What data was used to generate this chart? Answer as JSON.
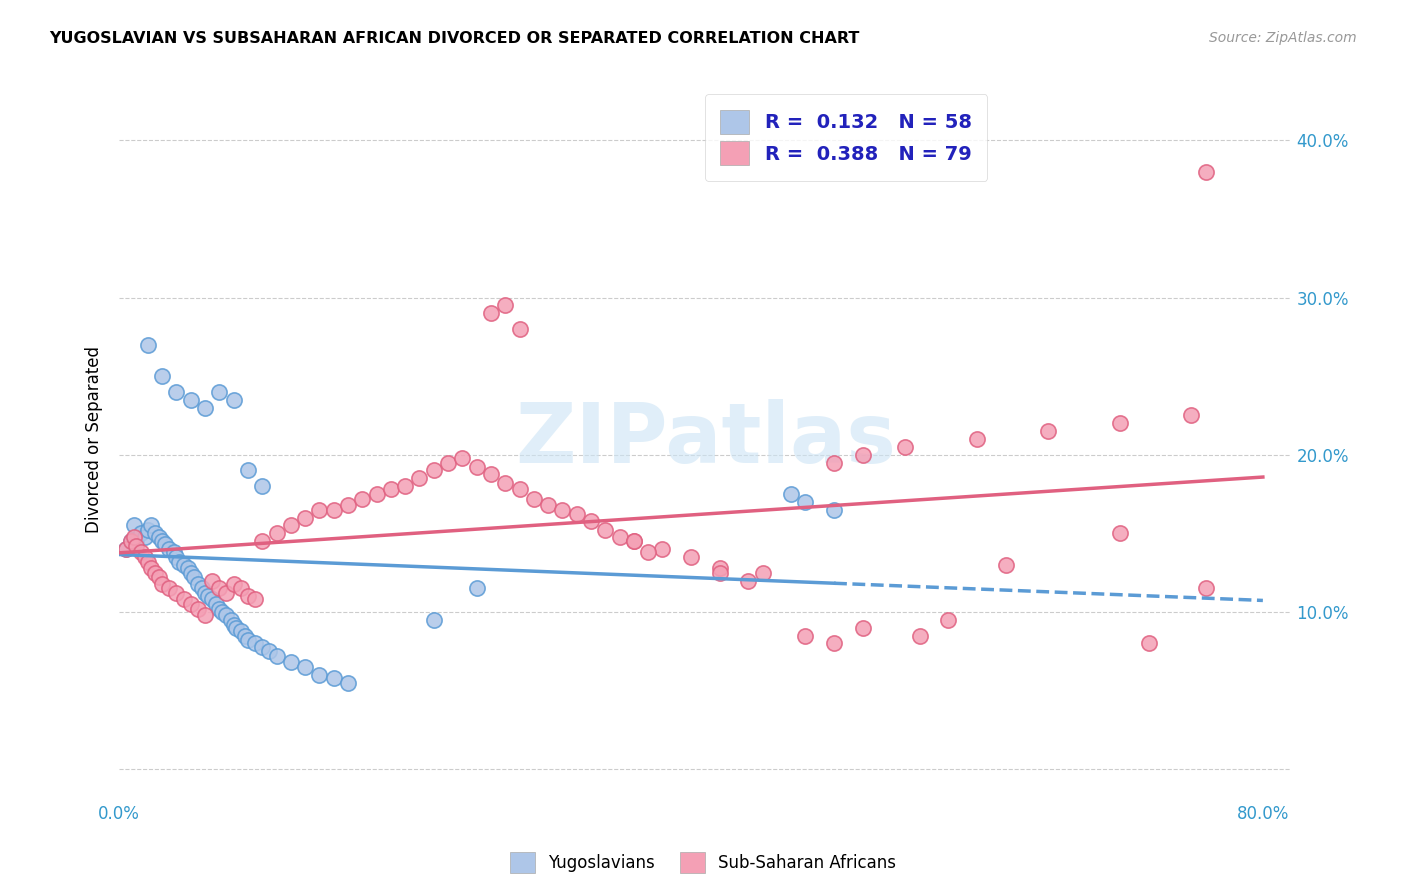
{
  "title": "YUGOSLAVIAN VS SUBSAHARAN AFRICAN DIVORCED OR SEPARATED CORRELATION CHART",
  "source": "Source: ZipAtlas.com",
  "ylabel": "Divorced or Separated",
  "xlim": [
    0.0,
    0.82
  ],
  "ylim": [
    -0.02,
    0.44
  ],
  "yticks": [
    0.0,
    0.1,
    0.2,
    0.3,
    0.4
  ],
  "ytick_labels": [
    "",
    "10.0%",
    "20.0%",
    "30.0%",
    "40.0%"
  ],
  "xticks": [
    0.0,
    0.1,
    0.2,
    0.3,
    0.4,
    0.5,
    0.6,
    0.7,
    0.8
  ],
  "xtick_labels": [
    "0.0%",
    "",
    "",
    "",
    "",
    "",
    "",
    "",
    "80.0%"
  ],
  "blue_R": 0.132,
  "blue_N": 58,
  "pink_R": 0.388,
  "pink_N": 79,
  "blue_color": "#aec6e8",
  "pink_color": "#f4a0b5",
  "blue_line_color": "#5b9bd5",
  "pink_line_color": "#e06080",
  "watermark": "ZIPatlas",
  "legend_color": "#2222bb",
  "blue_x": [
    0.005,
    0.008,
    0.01,
    0.012,
    0.015,
    0.018,
    0.02,
    0.022,
    0.025,
    0.028,
    0.03,
    0.032,
    0.035,
    0.038,
    0.04,
    0.042,
    0.045,
    0.048,
    0.05,
    0.052,
    0.055,
    0.058,
    0.06,
    0.062,
    0.065,
    0.068,
    0.07,
    0.072,
    0.075,
    0.078,
    0.08,
    0.082,
    0.085,
    0.088,
    0.09,
    0.095,
    0.1,
    0.105,
    0.11,
    0.12,
    0.13,
    0.14,
    0.15,
    0.16,
    0.22,
    0.25,
    0.02,
    0.03,
    0.04,
    0.05,
    0.06,
    0.07,
    0.08,
    0.09,
    0.1,
    0.47,
    0.48,
    0.5
  ],
  "blue_y": [
    0.14,
    0.145,
    0.155,
    0.145,
    0.15,
    0.148,
    0.152,
    0.155,
    0.15,
    0.148,
    0.145,
    0.143,
    0.14,
    0.138,
    0.135,
    0.132,
    0.13,
    0.128,
    0.125,
    0.122,
    0.118,
    0.115,
    0.112,
    0.11,
    0.108,
    0.105,
    0.102,
    0.1,
    0.098,
    0.095,
    0.092,
    0.09,
    0.088,
    0.085,
    0.082,
    0.08,
    0.078,
    0.075,
    0.072,
    0.068,
    0.065,
    0.06,
    0.058,
    0.055,
    0.095,
    0.115,
    0.27,
    0.25,
    0.24,
    0.235,
    0.23,
    0.24,
    0.235,
    0.19,
    0.18,
    0.175,
    0.17,
    0.165
  ],
  "pink_x": [
    0.005,
    0.008,
    0.01,
    0.012,
    0.015,
    0.018,
    0.02,
    0.022,
    0.025,
    0.028,
    0.03,
    0.035,
    0.04,
    0.045,
    0.05,
    0.055,
    0.06,
    0.065,
    0.07,
    0.075,
    0.08,
    0.085,
    0.09,
    0.095,
    0.1,
    0.11,
    0.12,
    0.13,
    0.14,
    0.15,
    0.16,
    0.17,
    0.18,
    0.19,
    0.2,
    0.21,
    0.22,
    0.23,
    0.24,
    0.25,
    0.26,
    0.27,
    0.28,
    0.29,
    0.3,
    0.31,
    0.32,
    0.33,
    0.34,
    0.35,
    0.36,
    0.38,
    0.4,
    0.42,
    0.45,
    0.5,
    0.52,
    0.55,
    0.6,
    0.65,
    0.7,
    0.75,
    0.76,
    0.26,
    0.27,
    0.28,
    0.36,
    0.37,
    0.42,
    0.44,
    0.48,
    0.5,
    0.52,
    0.56,
    0.58,
    0.62,
    0.7,
    0.72,
    0.76
  ],
  "pink_y": [
    0.14,
    0.145,
    0.148,
    0.142,
    0.138,
    0.135,
    0.132,
    0.128,
    0.125,
    0.122,
    0.118,
    0.115,
    0.112,
    0.108,
    0.105,
    0.102,
    0.098,
    0.12,
    0.115,
    0.112,
    0.118,
    0.115,
    0.11,
    0.108,
    0.145,
    0.15,
    0.155,
    0.16,
    0.165,
    0.165,
    0.168,
    0.172,
    0.175,
    0.178,
    0.18,
    0.185,
    0.19,
    0.195,
    0.198,
    0.192,
    0.188,
    0.182,
    0.178,
    0.172,
    0.168,
    0.165,
    0.162,
    0.158,
    0.152,
    0.148,
    0.145,
    0.14,
    0.135,
    0.128,
    0.125,
    0.195,
    0.2,
    0.205,
    0.21,
    0.215,
    0.22,
    0.225,
    0.115,
    0.29,
    0.295,
    0.28,
    0.145,
    0.138,
    0.125,
    0.12,
    0.085,
    0.08,
    0.09,
    0.085,
    0.095,
    0.13,
    0.15,
    0.08,
    0.38
  ]
}
